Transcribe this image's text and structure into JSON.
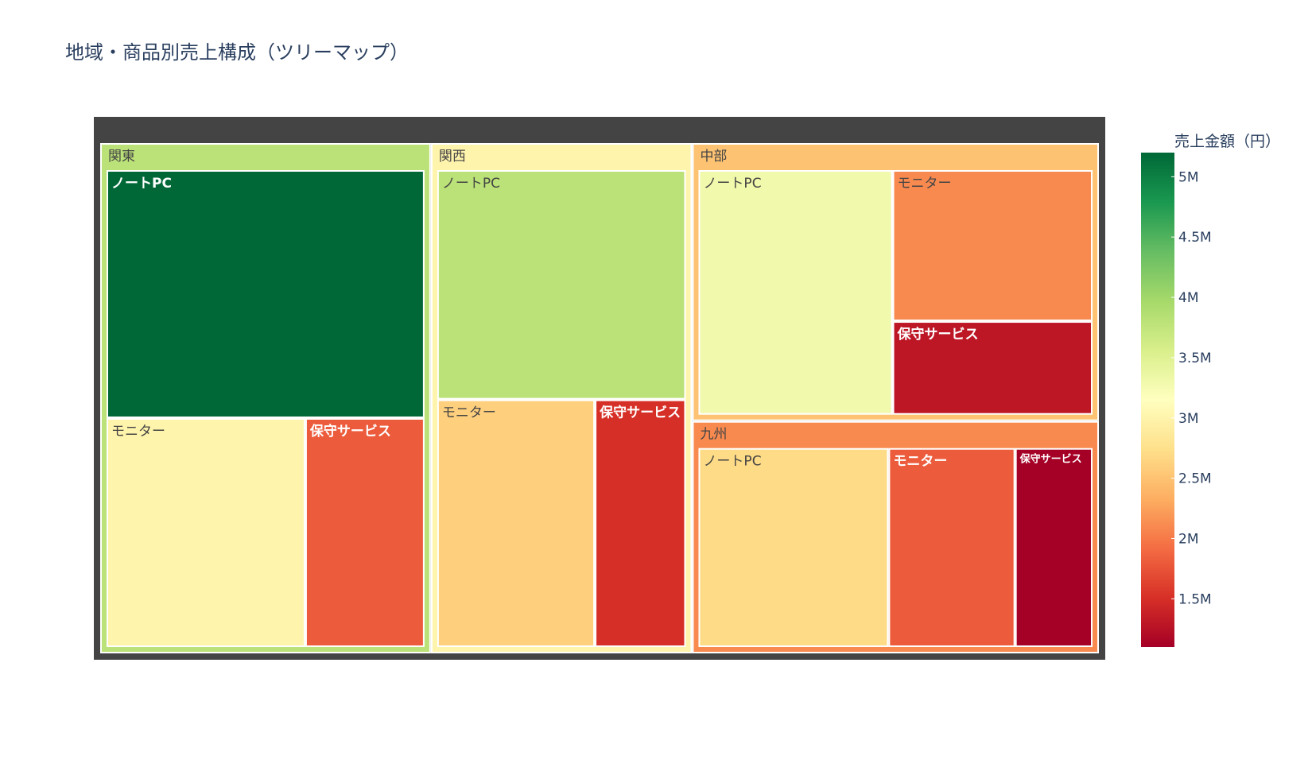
{
  "title": "地域・商品別売上構成（ツリーマップ）",
  "chart_data": {
    "type": "treemap",
    "color_metric": "売上金額（円）",
    "colorscale": [
      "#a50026",
      "#d73027",
      "#f46d43",
      "#fdae61",
      "#fee08b",
      "#ffffbf",
      "#d9ef8b",
      "#a6d96a",
      "#66bd63",
      "#1a9850",
      "#006837"
    ],
    "color_range": [
      1100000,
      5200000
    ],
    "root_color": "#444444",
    "regions": [
      {
        "name": "関東",
        "color_value": 3800000,
        "children": [
          {
            "name": "ノートPC",
            "value": 5200000
          },
          {
            "name": "モニター",
            "value": 3000000
          },
          {
            "name": "保守サービス",
            "value": 1800000
          }
        ]
      },
      {
        "name": "関西",
        "color_value": 3000000,
        "children": [
          {
            "name": "ノートPC",
            "value": 3800000
          },
          {
            "name": "モニター",
            "value": 2600000
          },
          {
            "name": "保守サービス",
            "value": 1500000
          }
        ]
      },
      {
        "name": "中部",
        "color_value": 2500000,
        "children": [
          {
            "name": "ノートPC",
            "value": 3300000
          },
          {
            "name": "モニター",
            "value": 2100000
          },
          {
            "name": "保守サービス",
            "value": 1300000
          }
        ]
      },
      {
        "name": "九州",
        "color_value": 2100000,
        "children": [
          {
            "name": "ノートPC",
            "value": 2700000
          },
          {
            "name": "モニター",
            "value": 1800000
          },
          {
            "name": "保守サービス",
            "value": 1100000
          }
        ]
      }
    ],
    "colorbar": {
      "title": "売上金額（円）",
      "ticks": [
        {
          "value": 1500000,
          "label": "1.5M"
        },
        {
          "value": 2000000,
          "label": "2M"
        },
        {
          "value": 2500000,
          "label": "2.5M"
        },
        {
          "value": 3000000,
          "label": "3M"
        },
        {
          "value": 3500000,
          "label": "3.5M"
        },
        {
          "value": 4000000,
          "label": "4M"
        },
        {
          "value": 4500000,
          "label": "4.5M"
        },
        {
          "value": 5000000,
          "label": "5M"
        }
      ]
    }
  }
}
